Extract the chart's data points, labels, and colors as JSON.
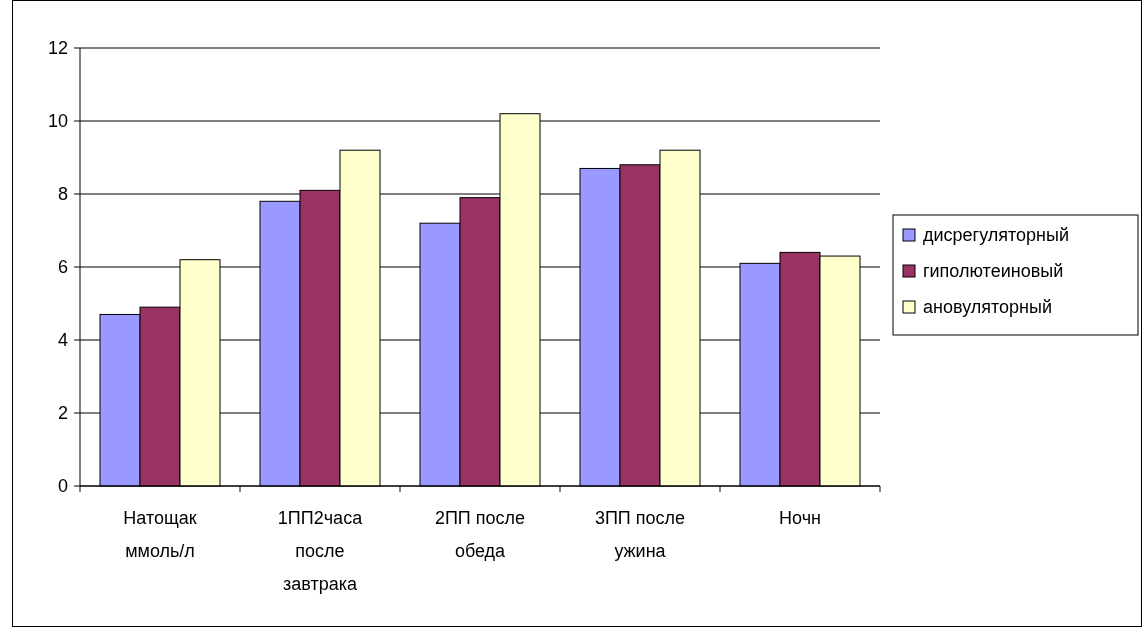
{
  "chart_data": {
    "type": "bar",
    "categories": [
      "Натощак ммоль/л",
      "1ПП2часа после завтрака",
      "2ПП после обеда",
      "3ПП после ужина",
      "Ночн"
    ],
    "series": [
      {
        "name": "дисрегуляторный",
        "color": "#9999ff",
        "values": [
          4.7,
          7.8,
          7.2,
          8.7,
          6.1
        ]
      },
      {
        "name": "гиполютеиновый",
        "color": "#993366",
        "values": [
          4.9,
          8.1,
          7.9,
          8.8,
          6.4
        ]
      },
      {
        "name": "ановуляторный",
        "color": "#ffffcc",
        "values": [
          6.2,
          9.2,
          10.2,
          9.2,
          6.3
        ]
      }
    ],
    "ylim": [
      0,
      12
    ],
    "yticks": [
      0,
      2,
      4,
      6,
      8,
      10,
      12
    ],
    "grid": "y",
    "legend": "right"
  }
}
